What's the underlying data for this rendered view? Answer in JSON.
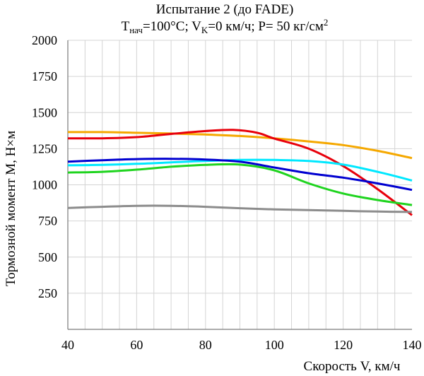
{
  "chart_data": {
    "type": "line",
    "title": "Испытание 2 (до FADE)",
    "subtitle": {
      "t_prefix": "T",
      "t_sub": "нач",
      "t_value": "=100°C; V",
      "v_sub": "K",
      "v_value": "=0 км/ч; P= 50 кг/см",
      "p_sup": "2"
    },
    "xlabel": "Скорость V, км/ч",
    "ylabel": "Тормозной момент М, Н×м",
    "xlim": [
      40,
      140
    ],
    "ylim": [
      0,
      2000
    ],
    "x_ticks": [
      40,
      60,
      80,
      100,
      120,
      140
    ],
    "y_ticks": [
      250,
      500,
      750,
      1000,
      1250,
      1500,
      1750,
      2000
    ],
    "y_tick_labels": [
      "250",
      "500",
      "750",
      "1000",
      "1250",
      "1500",
      "1750",
      "2000"
    ],
    "x_tick_labels": [
      "40",
      "60",
      "80",
      "100",
      "120",
      "140"
    ],
    "grid": "vertical minor every 5, horizontal every 250",
    "legend": "none",
    "series": [
      {
        "color": "#f5a800",
        "x": [
          40,
          50,
          60,
          70,
          80,
          90,
          100,
          110,
          120,
          130,
          140
        ],
        "y": [
          1365,
          1365,
          1360,
          1355,
          1348,
          1338,
          1322,
          1300,
          1275,
          1235,
          1185
        ]
      },
      {
        "color": "#e8000b",
        "x": [
          40,
          50,
          60,
          70,
          80,
          88,
          95,
          100,
          110,
          120,
          130,
          140
        ],
        "y": [
          1322,
          1322,
          1330,
          1352,
          1372,
          1380,
          1360,
          1320,
          1250,
          1130,
          970,
          790
        ]
      },
      {
        "color": "#00e8ff",
        "x": [
          40,
          50,
          60,
          70,
          80,
          90,
          100,
          110,
          120,
          130,
          140
        ],
        "y": [
          1135,
          1138,
          1145,
          1155,
          1165,
          1172,
          1172,
          1165,
          1140,
          1090,
          1030
        ]
      },
      {
        "color": "#0000d0",
        "x": [
          40,
          50,
          60,
          70,
          80,
          90,
          100,
          110,
          120,
          130,
          140
        ],
        "y": [
          1160,
          1170,
          1178,
          1180,
          1175,
          1160,
          1120,
          1080,
          1050,
          1010,
          965
        ]
      },
      {
        "color": "#1fd41f",
        "x": [
          40,
          50,
          60,
          70,
          80,
          90,
          100,
          110,
          120,
          130,
          140
        ],
        "y": [
          1085,
          1090,
          1105,
          1125,
          1138,
          1140,
          1100,
          1010,
          940,
          895,
          860
        ]
      },
      {
        "color": "#8c8c8c",
        "x": [
          40,
          50,
          60,
          70,
          80,
          90,
          100,
          110,
          120,
          130,
          140
        ],
        "y": [
          840,
          848,
          855,
          855,
          848,
          838,
          830,
          825,
          820,
          815,
          812
        ]
      }
    ]
  }
}
